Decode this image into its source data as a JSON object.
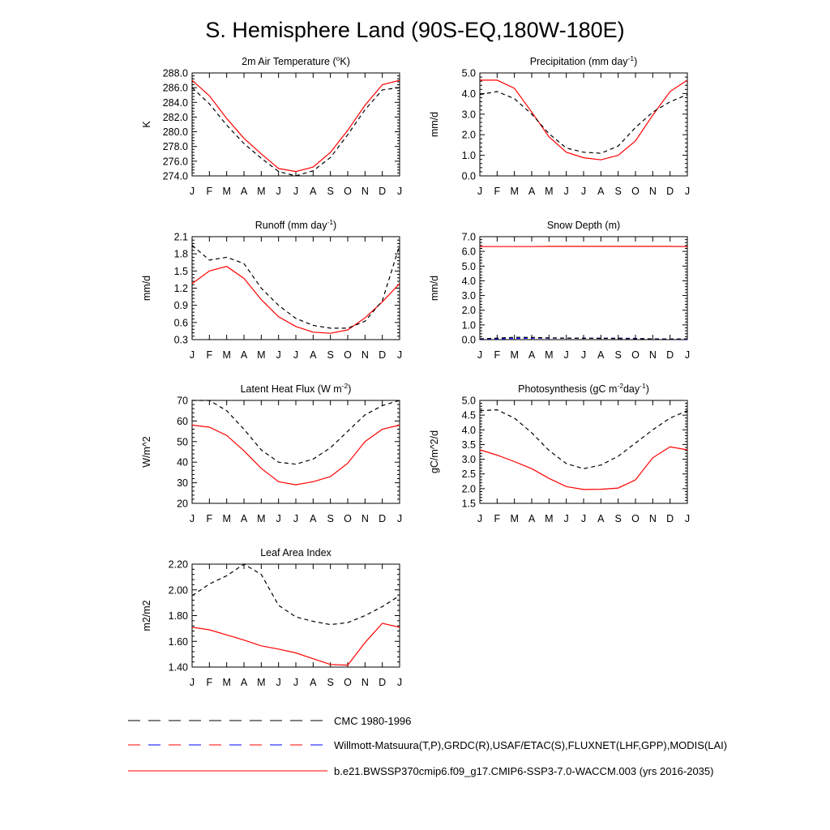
{
  "title": "S. Hemisphere Land (90S-EQ,180W-180E)",
  "months": [
    "J",
    "F",
    "M",
    "A",
    "M",
    "J",
    "J",
    "A",
    "S",
    "O",
    "N",
    "D",
    "J"
  ],
  "legend": [
    {
      "label": "CMC 1980-1996",
      "style": "dashed",
      "colors": [
        "#000000"
      ]
    },
    {
      "label": "Willmott-Matsuura(T,P),GRDC(R),USAF/ETAC(S),FLUXNET(LHF,GPP),MODIS(LAI)",
      "style": "dashed",
      "colors": [
        "#ff0000",
        "#0000ff"
      ]
    },
    {
      "label": "b.e21.BWSSP370cmip6.f09_g17.CMIP6-SSP3-7.0-WACCM.003 (yrs 2016-2035)",
      "style": "solid",
      "colors": [
        "#ff0000"
      ]
    }
  ],
  "chart_data": [
    {
      "type": "line",
      "title_main": "2m Air Temperature (",
      "title_sup": "o",
      "title_tail": "K)",
      "ylabel": "K",
      "ylim": [
        274,
        288
      ],
      "yticks": [
        "274.0",
        "276.0",
        "278.0",
        "280.0",
        "282.0",
        "284.0",
        "286.0",
        "288.0"
      ],
      "x": [
        "J",
        "F",
        "M",
        "A",
        "M",
        "J",
        "J",
        "A",
        "S",
        "O",
        "N",
        "D",
        "J"
      ],
      "series": [
        {
          "style": "solid",
          "color": "#ff0000",
          "values": [
            287.0,
            284.9,
            281.8,
            279.1,
            277.0,
            275.0,
            274.6,
            275.2,
            277.2,
            280.2,
            283.6,
            286.4,
            287.0
          ]
        },
        {
          "style": "dashed",
          "color": "#000000",
          "values": [
            286.0,
            283.8,
            280.9,
            278.4,
            276.4,
            274.6,
            274.0,
            274.7,
            276.5,
            279.6,
            283.0,
            285.7,
            286.0
          ]
        }
      ]
    },
    {
      "type": "line",
      "title_main": "Precipitation (mm day",
      "title_sup": "-1",
      "title_tail": ")",
      "ylabel": "mm/d",
      "ylim": [
        0,
        5
      ],
      "yticks": [
        "0.0",
        "1.0",
        "2.0",
        "3.0",
        "4.0",
        "5.0"
      ],
      "x": [
        "J",
        "F",
        "M",
        "A",
        "M",
        "J",
        "J",
        "A",
        "S",
        "O",
        "N",
        "D",
        "J"
      ],
      "series": [
        {
          "style": "solid",
          "color": "#ff0000",
          "values": [
            4.65,
            4.65,
            4.25,
            3.1,
            1.9,
            1.15,
            0.88,
            0.78,
            1.0,
            1.7,
            2.95,
            4.1,
            4.65
          ]
        },
        {
          "style": "dashed",
          "color": "#000000",
          "values": [
            3.95,
            4.1,
            3.75,
            3.0,
            2.05,
            1.35,
            1.15,
            1.1,
            1.45,
            2.35,
            3.1,
            3.6,
            3.95
          ]
        }
      ]
    },
    {
      "type": "line",
      "title_main": "Runoff (mm day",
      "title_sup": "-1",
      "title_tail": ")",
      "ylabel": "mm/d",
      "ylim": [
        0.3,
        2.1
      ],
      "yticks": [
        "0.3",
        "0.6",
        "0.9",
        "1.2",
        "1.5",
        "1.8",
        "2.1"
      ],
      "x": [
        "J",
        "F",
        "M",
        "A",
        "M",
        "J",
        "J",
        "A",
        "S",
        "O",
        "N",
        "D",
        "J"
      ],
      "series": [
        {
          "style": "solid",
          "color": "#ff0000",
          "values": [
            1.28,
            1.5,
            1.58,
            1.37,
            1.0,
            0.7,
            0.53,
            0.43,
            0.41,
            0.47,
            0.68,
            0.96,
            1.28
          ]
        },
        {
          "style": "dashed",
          "color": "#000000",
          "values": [
            1.95,
            1.69,
            1.74,
            1.63,
            1.2,
            0.9,
            0.67,
            0.55,
            0.5,
            0.5,
            0.62,
            0.98,
            1.95
          ]
        }
      ]
    },
    {
      "type": "line",
      "title_main": "Snow Depth (m)",
      "title_sup": "",
      "title_tail": "",
      "ylabel": "mm/d",
      "ylim": [
        0,
        7
      ],
      "yticks": [
        "0.0",
        "1.0",
        "2.0",
        "3.0",
        "4.0",
        "5.0",
        "6.0",
        "7.0"
      ],
      "x": [
        "J",
        "F",
        "M",
        "A",
        "M",
        "J",
        "J",
        "A",
        "S",
        "O",
        "N",
        "D",
        "J"
      ],
      "series": [
        {
          "style": "solid",
          "color": "#ff0000",
          "values": [
            6.33,
            6.33,
            6.33,
            6.33,
            6.34,
            6.34,
            6.34,
            6.34,
            6.34,
            6.34,
            6.34,
            6.34,
            6.33
          ]
        },
        {
          "style": "dashed",
          "color": "#0000ff",
          "values": [
            0.03,
            0.05,
            0.08,
            0.1,
            0.1,
            0.1,
            0.1,
            0.1,
            0.1,
            0.08,
            0.05,
            0.03,
            0.03
          ]
        },
        {
          "style": "dashed",
          "color": "#000000",
          "values": [
            0.05,
            0.1,
            0.16,
            0.15,
            0.12,
            0.1,
            0.09,
            0.08,
            0.07,
            0.06,
            0.05,
            0.04,
            0.05
          ]
        }
      ]
    },
    {
      "type": "line",
      "title_main": "Latent Heat Flux (W m",
      "title_sup": "-2",
      "title_tail": ")",
      "ylabel": "W/m^2",
      "ylim": [
        20,
        70
      ],
      "yticks": [
        "20",
        "30",
        "40",
        "50",
        "60",
        "70"
      ],
      "x": [
        "J",
        "F",
        "M",
        "A",
        "M",
        "J",
        "J",
        "A",
        "S",
        "O",
        "N",
        "D",
        "J"
      ],
      "series": [
        {
          "style": "solid",
          "color": "#ff0000",
          "values": [
            58,
            57,
            53,
            45.5,
            37,
            30.5,
            29,
            30.5,
            33,
            39.5,
            50,
            56,
            58
          ]
        },
        {
          "style": "dashed",
          "color": "#000000",
          "values": [
            70,
            70,
            65,
            56,
            46,
            40,
            39,
            41.5,
            47,
            55,
            63,
            67.5,
            70
          ]
        }
      ]
    },
    {
      "type": "line",
      "title_main": "Photosynthesis (gC m",
      "title_sup": "-2",
      "title_tail": "day",
      "title_sup2": "-1",
      "title_tail2": ")",
      "ylabel": "gC/m^2/d",
      "ylim": [
        1.5,
        5.0
      ],
      "yticks": [
        "1.5",
        "2.0",
        "2.5",
        "3.0",
        "3.5",
        "4.0",
        "4.5",
        "5.0"
      ],
      "x": [
        "J",
        "F",
        "M",
        "A",
        "M",
        "J",
        "J",
        "A",
        "S",
        "O",
        "N",
        "D",
        "J"
      ],
      "series": [
        {
          "style": "solid",
          "color": "#ff0000",
          "values": [
            3.32,
            3.14,
            2.92,
            2.68,
            2.35,
            2.07,
            1.97,
            1.98,
            2.02,
            2.3,
            3.05,
            3.42,
            3.32
          ]
        },
        {
          "style": "dashed",
          "color": "#000000",
          "values": [
            4.65,
            4.68,
            4.4,
            3.9,
            3.3,
            2.85,
            2.68,
            2.8,
            3.1,
            3.55,
            4.0,
            4.4,
            4.65
          ]
        }
      ]
    },
    {
      "type": "line",
      "title_main": "Leaf Area Index",
      "title_sup": "",
      "title_tail": "",
      "ylabel": "m2/m2",
      "ylim": [
        1.4,
        2.2
      ],
      "yticks": [
        "1.40",
        "1.60",
        "1.80",
        "2.00",
        "2.20"
      ],
      "x": [
        "J",
        "F",
        "M",
        "A",
        "M",
        "J",
        "J",
        "A",
        "S",
        "O",
        "N",
        "D",
        "J"
      ],
      "series": [
        {
          "style": "solid",
          "color": "#ff0000",
          "values": [
            1.71,
            1.69,
            1.65,
            1.61,
            1.565,
            1.54,
            1.51,
            1.465,
            1.42,
            1.415,
            1.59,
            1.74,
            1.71
          ]
        },
        {
          "style": "dashed",
          "color": "#000000",
          "values": [
            1.955,
            2.045,
            2.11,
            2.2,
            2.12,
            1.88,
            1.79,
            1.755,
            1.73,
            1.745,
            1.8,
            1.87,
            1.955
          ]
        }
      ]
    }
  ]
}
